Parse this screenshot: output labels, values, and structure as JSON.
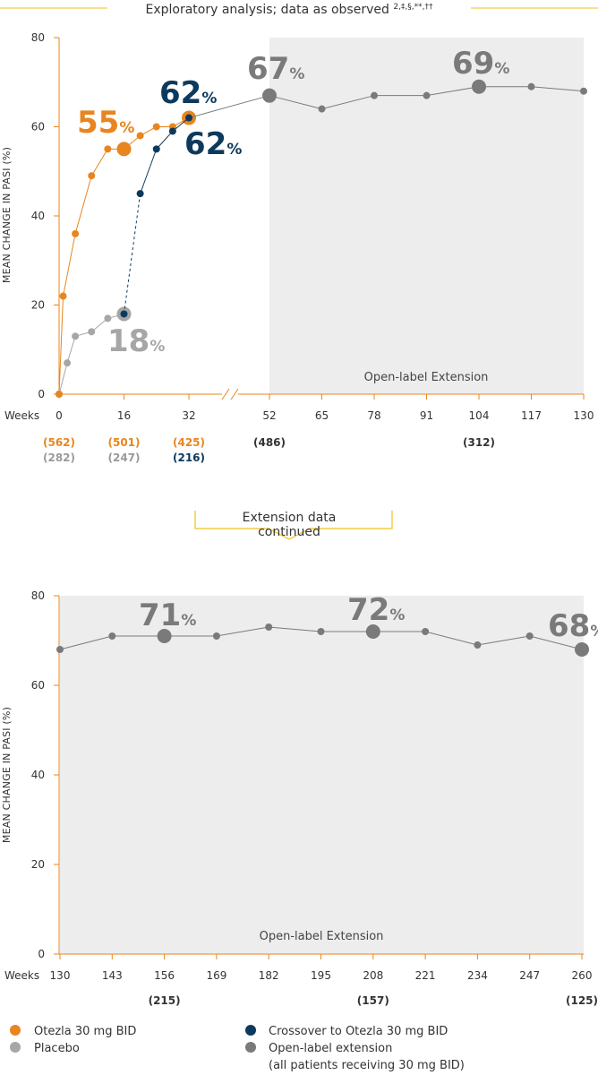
{
  "header": {
    "title": "Exploratory analysis; data as observed",
    "footnote_marks": "2,‡,§,**,††"
  },
  "continuation_label": [
    "Extension data",
    "continued"
  ],
  "colors": {
    "otezla": "#E8851E",
    "placebo": "#A6A6A6",
    "crossover": "#0D3A5C",
    "extension": "#7A7A7A",
    "shade": "#EDEDED",
    "axis": "#E8851E",
    "connector": "#F0C020"
  },
  "legend": [
    {
      "key": "otezla",
      "label": "Otezla 30 mg BID",
      "color": "#E8851E"
    },
    {
      "key": "placebo",
      "label": "Placebo",
      "color": "#A6A6A6"
    },
    {
      "key": "crossover",
      "label": "Crossover to Otezla 30 mg BID",
      "color": "#0D3A5C"
    },
    {
      "key": "extension",
      "label": "Open-label extension",
      "label2": "(all patients receiving 30 mg BID)",
      "color": "#7A7A7A"
    }
  ],
  "chart_data": [
    {
      "type": "line",
      "ylabel": "MEAN CHANGE IN PASI (%)",
      "xlabel": "Weeks",
      "ylim": [
        0,
        80
      ],
      "yticks": [
        0,
        20,
        40,
        60,
        80
      ],
      "xticks": [
        "0",
        "16",
        "32",
        "52",
        "65",
        "78",
        "91",
        "104",
        "117",
        "130"
      ],
      "axis_break_after": "32",
      "shaded_region": {
        "from_week": 52,
        "to_week": 130,
        "label": "Open-label Extension"
      },
      "series": [
        {
          "key": "otezla",
          "name": "Otezla 30 mg BID",
          "points": [
            [
              0,
              0
            ],
            [
              1,
              22
            ],
            [
              4,
              36
            ],
            [
              8,
              49
            ],
            [
              12,
              55
            ],
            [
              16,
              55
            ],
            [
              20,
              58
            ],
            [
              24,
              60
            ],
            [
              28,
              60
            ],
            [
              32,
              62
            ]
          ],
          "highlight": [
            [
              16,
              55
            ],
            [
              32,
              62
            ]
          ]
        },
        {
          "key": "placebo",
          "name": "Placebo",
          "points": [
            [
              0,
              0
            ],
            [
              2,
              7
            ],
            [
              4,
              13
            ],
            [
              8,
              14
            ],
            [
              12,
              17
            ],
            [
              16,
              18
            ]
          ],
          "highlight": [
            [
              16,
              18
            ]
          ]
        },
        {
          "key": "crossover",
          "name": "Crossover to Otezla 30 mg BID",
          "points": [
            [
              16,
              18
            ],
            [
              20,
              45
            ],
            [
              24,
              55
            ],
            [
              28,
              59
            ],
            [
              32,
              62
            ]
          ],
          "dashed_segment": [
            [
              16,
              18
            ],
            [
              20,
              45
            ]
          ],
          "highlight": []
        },
        {
          "key": "extension",
          "name": "Open-label extension",
          "points": [
            [
              32,
              62
            ],
            [
              52,
              67
            ],
            [
              65,
              64
            ],
            [
              78,
              67
            ],
            [
              91,
              67
            ],
            [
              104,
              69
            ],
            [
              117,
              69
            ],
            [
              130,
              68
            ]
          ],
          "highlight": [
            [
              52,
              67
            ],
            [
              104,
              69
            ]
          ]
        }
      ],
      "value_labels": [
        {
          "text": "55",
          "unit": "%",
          "week": 16,
          "value": 55,
          "series": "otezla"
        },
        {
          "text": "62",
          "unit": "%",
          "week": 32,
          "value": 62,
          "series": "crossover",
          "place": "above"
        },
        {
          "text": "62",
          "unit": "%",
          "week": 32,
          "value": 62,
          "series": "crossover",
          "place": "below"
        },
        {
          "text": "18",
          "unit": "%",
          "week": 16,
          "value": 18,
          "series": "placebo"
        },
        {
          "text": "67",
          "unit": "%",
          "week": 52,
          "value": 67,
          "series": "extension"
        },
        {
          "text": "69",
          "unit": "%",
          "week": 104,
          "value": 69,
          "series": "extension"
        }
      ],
      "sample_sizes": [
        {
          "week": 0,
          "otezla": "(562)",
          "placebo": "(282)"
        },
        {
          "week": 16,
          "otezla": "(501)",
          "placebo": "(247)"
        },
        {
          "week": 32,
          "otezla": "(425)",
          "crossover": "(216)"
        },
        {
          "week": 52,
          "extension": "(486)"
        },
        {
          "week": 104,
          "extension": "(312)"
        }
      ]
    },
    {
      "type": "line",
      "ylabel": "MEAN CHANGE IN PASI (%)",
      "xlabel": "Weeks",
      "ylim": [
        0,
        80
      ],
      "yticks": [
        0,
        20,
        40,
        60,
        80
      ],
      "xticks": [
        "130",
        "143",
        "156",
        "169",
        "182",
        "195",
        "208",
        "221",
        "234",
        "247",
        "260"
      ],
      "shaded_region": {
        "from_week": 130,
        "to_week": 260,
        "label": "Open-label Extension"
      },
      "series": [
        {
          "key": "extension",
          "name": "Open-label extension",
          "points": [
            [
              130,
              68
            ],
            [
              143,
              71
            ],
            [
              156,
              71
            ],
            [
              169,
              71
            ],
            [
              182,
              73
            ],
            [
              195,
              72
            ],
            [
              208,
              72
            ],
            [
              221,
              72
            ],
            [
              234,
              69
            ],
            [
              247,
              71
            ],
            [
              260,
              68
            ]
          ],
          "highlight": [
            [
              156,
              71
            ],
            [
              208,
              72
            ],
            [
              260,
              68
            ]
          ]
        }
      ],
      "value_labels": [
        {
          "text": "71",
          "unit": "%",
          "week": 156,
          "value": 71,
          "series": "extension"
        },
        {
          "text": "72",
          "unit": "%",
          "week": 208,
          "value": 72,
          "series": "extension"
        },
        {
          "text": "68",
          "unit": "%",
          "week": 260,
          "value": 68,
          "series": "extension"
        }
      ],
      "sample_sizes": [
        {
          "week": 156,
          "extension": "(215)"
        },
        {
          "week": 208,
          "extension": "(157)"
        },
        {
          "week": 260,
          "extension": "(125)"
        }
      ]
    }
  ]
}
